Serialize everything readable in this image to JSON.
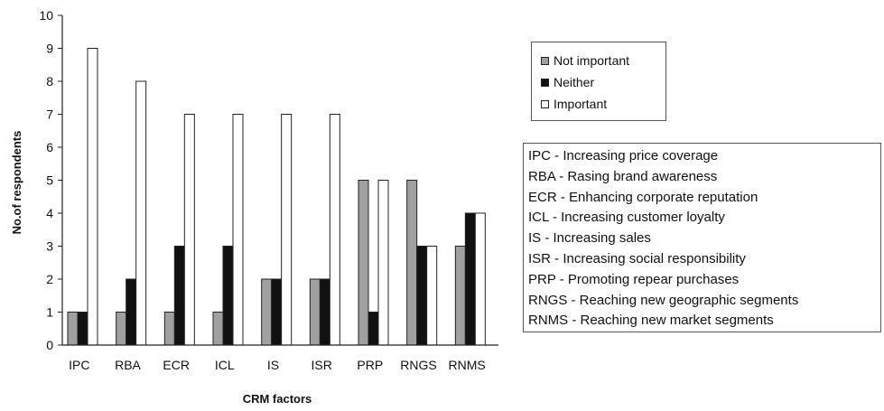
{
  "chart_data": {
    "type": "bar",
    "title": "",
    "xlabel": "CRM factors",
    "ylabel": "No.of respondents",
    "ylim": [
      0,
      10
    ],
    "yticks": [
      "0",
      "1",
      "2",
      "3",
      "4",
      "5",
      "6",
      "7",
      "8",
      "9",
      "10"
    ],
    "categories": [
      "IPC",
      "RBA",
      "ECR",
      "ICL",
      "IS",
      "ISR",
      "PRP",
      "RNGS",
      "RNMS"
    ],
    "series": [
      {
        "name": "Not important",
        "color": "#a0a0a0",
        "values": [
          1,
          1,
          1,
          1,
          2,
          2,
          5,
          5,
          3
        ]
      },
      {
        "name": "Neither",
        "color": "#111111",
        "values": [
          1,
          2,
          3,
          3,
          2,
          2,
          1,
          3,
          4
        ]
      },
      {
        "name": "Important",
        "color": "#ffffff",
        "values": [
          9,
          8,
          7,
          7,
          7,
          7,
          5,
          3,
          4
        ]
      }
    ],
    "grid": false,
    "legend_position": "right"
  },
  "abbreviations": [
    "IPC - Increasing price coverage",
    "RBA - Rasing brand awareness",
    "ECR - Enhancing corporate reputation",
    "ICL - Increasing customer loyalty",
    "IS - Increasing sales",
    "ISR - Increasing social responsibility",
    "PRP - Promoting repear purchases",
    "RNGS - Reaching new geographic segments",
    "RNMS - Reaching new market segments"
  ]
}
